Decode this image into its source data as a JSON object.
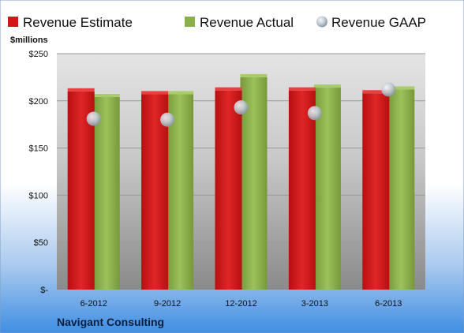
{
  "chart_data": {
    "type": "bar",
    "y_unit_label": "$millions",
    "categories": [
      "6-2012",
      "9-2012",
      "12-2012",
      "3-2013",
      "6-2013"
    ],
    "series": [
      {
        "name": "Revenue Estimate",
        "type": "bar",
        "color": "#d01818",
        "values": [
          210,
          207,
          211,
          211,
          208
        ]
      },
      {
        "name": "Revenue Actual",
        "type": "bar",
        "color": "#8caf4a",
        "values": [
          204,
          207,
          225,
          214,
          212
        ]
      },
      {
        "name": "Revenue GAAP",
        "type": "scatter",
        "color": "#b8c4d4",
        "values": [
          181,
          180,
          193,
          187,
          212
        ]
      }
    ],
    "ylim": [
      0,
      250
    ],
    "y_ticks": [
      0,
      50,
      100,
      150,
      200,
      250
    ],
    "y_tick_labels": [
      "$-",
      "$50",
      "$100",
      "$150",
      "$200",
      "$250"
    ],
    "grid": true,
    "legend_position": "top",
    "footer_label": "Navigant Consulting"
  }
}
